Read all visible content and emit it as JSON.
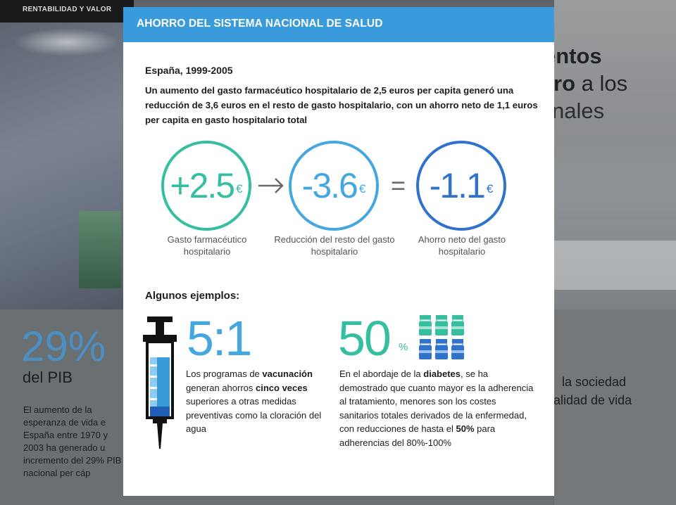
{
  "section_tag": "RENTABILIDAD Y VALOR",
  "background": {
    "heading_line1": "entos",
    "heading_line2_bold": "ro",
    "heading_line2_rest": " a los",
    "heading_line3": "nales",
    "big_stat": "29%",
    "big_stat_sub": "del PIB",
    "left_paragraph": "El aumento de la esperanza de vida e España entre 1970 y 2003 ha generado u incremento del 29% PIB nacional per cáp",
    "right_line1": "la sociedad",
    "right_line2": "alidad de vida"
  },
  "card": {
    "title": "AHORRO DEL SISTEMA NACIONAL DE SALUD",
    "period": "España, 1999-2005",
    "intro": "Un aumento del gasto farmacéutico hospitalario de 2,5 euros per capita generó una reducción de 3,6 euros en el resto de gasto hospitalario, con un ahorro neto de 1,1 euros per capita en gasto hospitalario total",
    "circles": [
      {
        "value": "+2.5",
        "currency": "€",
        "label": "Gasto farmacéutico hospitalario",
        "color": "#35bfa0"
      },
      {
        "value": "-3.6",
        "currency": "€",
        "label": "Reducción del resto del gasto hospitalario",
        "color": "#44a7e0"
      },
      {
        "value": "-1.1",
        "currency": "€",
        "label": "Ahorro neto del gasto hospitalario",
        "color": "#2f73cc"
      }
    ],
    "equals": "=",
    "examples_title": "Algunos ejemplos:",
    "example1": {
      "ratio": "5:1",
      "text_parts": [
        "Los programas de ",
        "vacunación",
        " generan ahorros ",
        "cinco veces",
        " superiores a otras medidas preventivas como la cloración del agua"
      ]
    },
    "example2": {
      "value": "50",
      "unit": "%",
      "text_parts": [
        "En el abordaje de la ",
        "diabetes",
        ", se ha demostrado que cuanto mayor es la adherencia al tratamiento, menores son los costes sanitarios totales derivados de la enfermedad, con reducciones de hasta el ",
        "50%",
        " para adherencias del 80%-100%"
      ]
    }
  }
}
